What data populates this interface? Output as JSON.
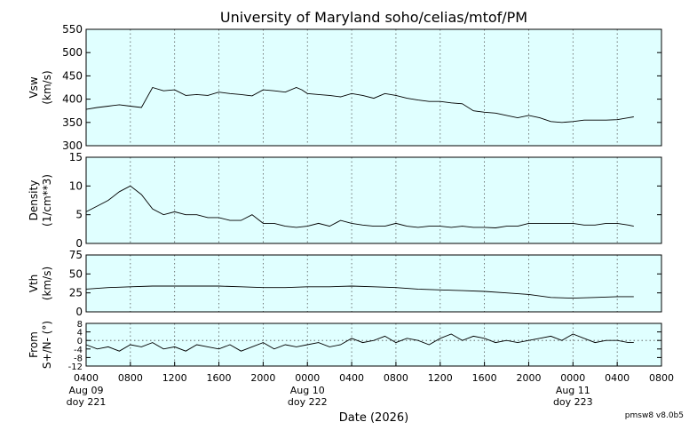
{
  "title": "University of Maryland  soho/celias/mtof/PM",
  "xlabel": "Date (2026)",
  "version": "pmsw8 v8.0b5",
  "colors": {
    "panel_bg": "#e0ffff",
    "line": "#000000",
    "grid": "#555555"
  },
  "x_ticks": [
    {
      "label": "0400",
      "date": "Aug 09",
      "doy": "doy 221",
      "hours": 0
    },
    {
      "label": "0800",
      "hours": 4
    },
    {
      "label": "1200",
      "hours": 8
    },
    {
      "label": "1600",
      "hours": 12
    },
    {
      "label": "2000",
      "hours": 16
    },
    {
      "label": "0000",
      "date": "Aug 10",
      "doy": "doy 222",
      "hours": 20
    },
    {
      "label": "0400",
      "hours": 24
    },
    {
      "label": "0800",
      "hours": 28
    },
    {
      "label": "1200",
      "hours": 32
    },
    {
      "label": "1600",
      "hours": 36
    },
    {
      "label": "2000",
      "hours": 40
    },
    {
      "label": "0000",
      "date": "Aug 11",
      "doy": "doy 223",
      "hours": 44
    },
    {
      "label": "0400",
      "hours": 48
    },
    {
      "label": "0800",
      "hours": 52
    }
  ],
  "chart_data": [
    {
      "type": "line",
      "ylabel": [
        "Vsw",
        "(km/s)"
      ],
      "ylim": [
        300,
        550
      ],
      "yticks": [
        300,
        350,
        400,
        450,
        500,
        550
      ],
      "grid": "vertical dotted",
      "x_unit": "hours since Aug 09 0400",
      "x": [
        0,
        1,
        2,
        3,
        4,
        5,
        6,
        7,
        8,
        9,
        10,
        11,
        12,
        13,
        14,
        15,
        16,
        17,
        18,
        19,
        19.5,
        20,
        21,
        22,
        23,
        24,
        25,
        26,
        27,
        28,
        29,
        30,
        31,
        32,
        33,
        34,
        35,
        36,
        37,
        38,
        39,
        40,
        41,
        42,
        43,
        44,
        45,
        46,
        47,
        48,
        49,
        49.5
      ],
      "y": [
        378,
        382,
        385,
        388,
        385,
        382,
        425,
        418,
        420,
        408,
        410,
        408,
        415,
        412,
        410,
        407,
        420,
        418,
        415,
        425,
        420,
        412,
        410,
        408,
        405,
        412,
        408,
        402,
        412,
        408,
        402,
        398,
        395,
        395,
        392,
        390,
        375,
        372,
        370,
        365,
        360,
        365,
        360,
        352,
        350,
        352,
        355,
        355,
        355,
        356,
        360,
        362
      ]
    },
    {
      "type": "line",
      "ylabel": [
        "Density",
        "(1/cm**3)"
      ],
      "ylim": [
        0,
        15
      ],
      "yticks": [
        0,
        5,
        10,
        15
      ],
      "grid": "vertical dotted",
      "x_unit": "hours since Aug 09 0400",
      "x": [
        0,
        1,
        2,
        3,
        4,
        5,
        6,
        7,
        8,
        9,
        10,
        11,
        12,
        13,
        14,
        15,
        16,
        17,
        18,
        19,
        20,
        21,
        22,
        23,
        24,
        25,
        26,
        27,
        28,
        29,
        30,
        31,
        32,
        33,
        34,
        35,
        36,
        37,
        38,
        39,
        40,
        41,
        42,
        43,
        44,
        45,
        46,
        47,
        48,
        49,
        49.5
      ],
      "y": [
        5.5,
        6.5,
        7.5,
        9.0,
        10.0,
        8.5,
        6.0,
        5.0,
        5.5,
        5.0,
        5.0,
        4.5,
        4.5,
        4.0,
        4.0,
        5.0,
        3.5,
        3.5,
        3.0,
        2.8,
        3.0,
        3.5,
        3.0,
        4.0,
        3.5,
        3.2,
        3.0,
        3.0,
        3.5,
        3.0,
        2.8,
        3.0,
        3.0,
        2.8,
        3.0,
        2.8,
        2.8,
        2.7,
        3.0,
        3.0,
        3.5,
        3.5,
        3.5,
        3.5,
        3.5,
        3.2,
        3.2,
        3.5,
        3.5,
        3.2,
        3.0
      ]
    },
    {
      "type": "line",
      "ylabel": [
        "Vth",
        "(km/s)"
      ],
      "ylim": [
        0,
        75
      ],
      "yticks": [
        0,
        25,
        50,
        75
      ],
      "grid": "vertical dotted",
      "x_unit": "hours since Aug 09 0400",
      "x": [
        0,
        2,
        4,
        6,
        8,
        10,
        12,
        14,
        16,
        18,
        20,
        22,
        24,
        26,
        28,
        30,
        32,
        34,
        36,
        38,
        40,
        42,
        44,
        46,
        48,
        49.5
      ],
      "y": [
        30,
        32,
        33,
        34,
        34,
        34,
        34,
        33,
        32,
        32,
        33,
        33,
        34,
        33,
        32,
        30,
        29,
        28,
        27,
        25,
        23,
        19,
        18,
        19,
        20,
        20
      ]
    },
    {
      "type": "line",
      "ylabel": [
        "From",
        "S+/N- (°)"
      ],
      "ylim": [
        -12,
        8
      ],
      "yticks": [
        -12,
        -8,
        -4,
        0,
        4,
        8
      ],
      "grid": "vertical dotted, dotted zero line",
      "x_unit": "hours since Aug 09 0400",
      "x": [
        0,
        1,
        2,
        3,
        4,
        5,
        6,
        7,
        8,
        9,
        10,
        11,
        12,
        13,
        14,
        15,
        16,
        17,
        18,
        19,
        20,
        21,
        22,
        23,
        24,
        25,
        26,
        27,
        28,
        29,
        30,
        31,
        32,
        33,
        34,
        35,
        36,
        37,
        38,
        39,
        40,
        41,
        42,
        43,
        44,
        45,
        46,
        47,
        48,
        49,
        49.5
      ],
      "y": [
        -2,
        -4,
        -3,
        -5,
        -2,
        -3,
        -1,
        -4,
        -3,
        -5,
        -2,
        -3,
        -4,
        -2,
        -5,
        -3,
        -1,
        -4,
        -2,
        -3,
        -2,
        -1,
        -3,
        -2,
        1,
        -1,
        0,
        2,
        -1,
        1,
        0,
        -2,
        1,
        3,
        0,
        2,
        1,
        -1,
        0,
        -1,
        0,
        1,
        2,
        0,
        3,
        1,
        -1,
        0,
        0,
        -1,
        -1
      ]
    }
  ]
}
